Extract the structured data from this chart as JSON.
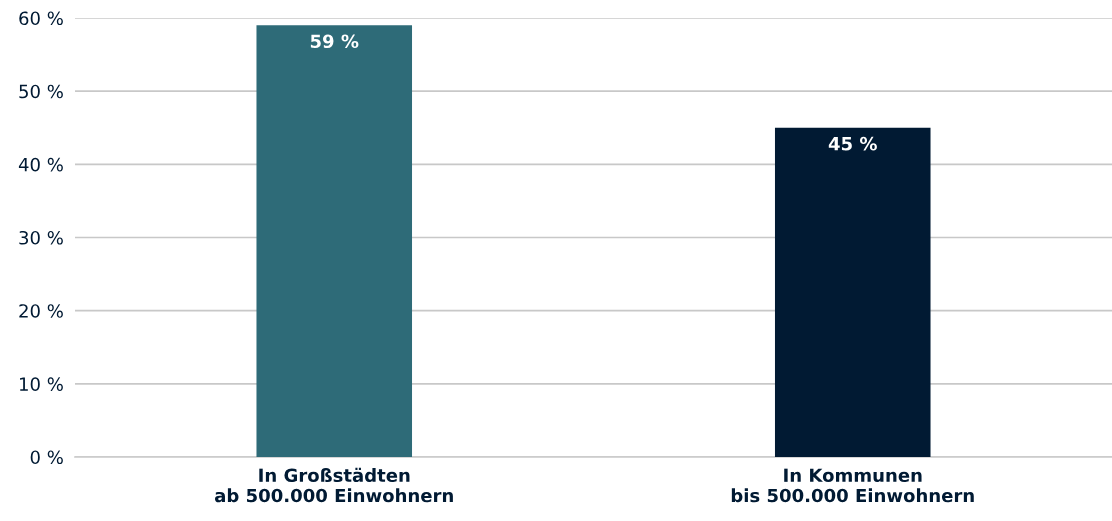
{
  "chart_data": {
    "type": "bar",
    "categories": [
      "In Großstädten\nab 500.000 Einwohnern",
      "In Kommunen\nbis 500.000 Einwohnern"
    ],
    "values": [
      59,
      45
    ],
    "colors": [
      "#2e6b78",
      "#011a33"
    ],
    "value_labels": [
      "59 %",
      "45 %"
    ],
    "ylim": [
      0,
      60
    ],
    "yticks": [
      {
        "value": 0,
        "label": "0 %"
      },
      {
        "value": 10,
        "label": "10 %"
      },
      {
        "value": 20,
        "label": "20 %"
      },
      {
        "value": 30,
        "label": "30 %"
      },
      {
        "value": 40,
        "label": "40 %"
      },
      {
        "value": 50,
        "label": "50 %"
      },
      {
        "value": 60,
        "label": "60 %"
      }
    ],
    "grid": "y",
    "legend": false
  }
}
